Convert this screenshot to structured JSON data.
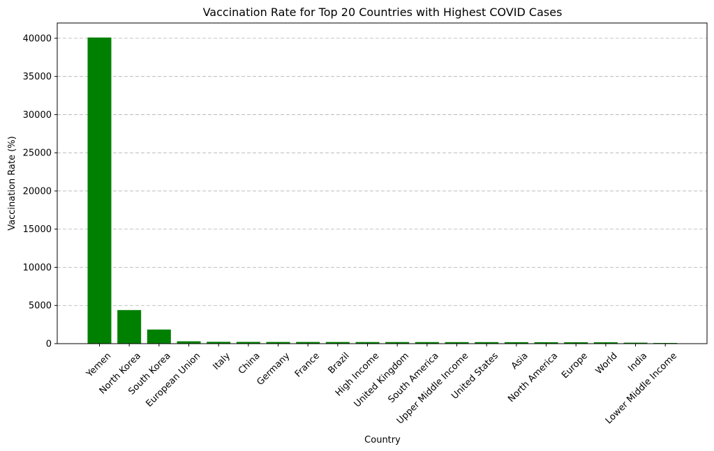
{
  "chart_data": {
    "type": "bar",
    "title": "Vaccination Rate for Top 20 Countries with Highest COVID Cases",
    "xlabel": "Country",
    "ylabel": "Vaccination Rate (%)",
    "ylim": [
      0,
      42000
    ],
    "yticks": [
      0,
      5000,
      10000,
      15000,
      20000,
      25000,
      30000,
      35000,
      40000
    ],
    "grid": "y-dashed",
    "bar_color": "#008000",
    "categories": [
      "Yemen",
      "North Korea",
      "South Korea",
      "European Union",
      "Italy",
      "China",
      "Germany",
      "France",
      "Brazil",
      "High Income",
      "United Kingdom",
      "South America",
      "Upper Middle Income",
      "United States",
      "Asia",
      "North America",
      "Europe",
      "World",
      "India",
      "Lower Middle Income"
    ],
    "values": [
      40100,
      4400,
      1850,
      310,
      240,
      230,
      220,
      220,
      215,
      210,
      210,
      205,
      200,
      200,
      195,
      190,
      185,
      180,
      130,
      90
    ]
  }
}
